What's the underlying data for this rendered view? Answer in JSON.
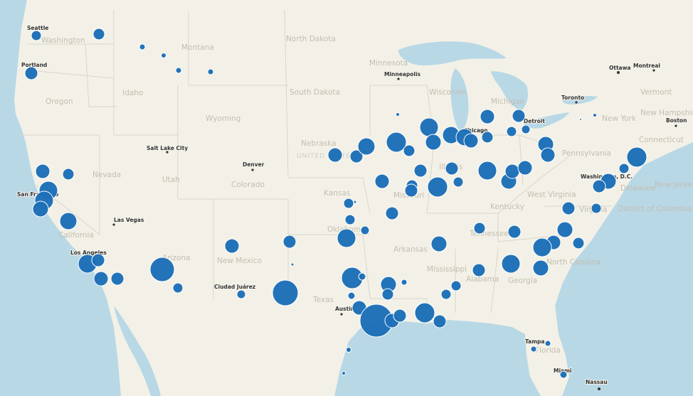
{
  "map": {
    "marker_color": "#1d6fb8",
    "land_color": "#f2f0e6",
    "water_color": "#b8d8e8",
    "state_labels": [
      "Washington",
      "Montana",
      "North Dakota",
      "Minnesota",
      "Oregon",
      "Idaho",
      "South Dakota",
      "Wisconsin",
      "Michigan",
      "Vermont",
      "New Hampshire",
      "Wyoming",
      "Nebraska",
      "Nevada",
      "Utah",
      "Colorado",
      "Kansas",
      "Missouri",
      "Illinois",
      "Pennsylvania",
      "New York",
      "Connecticut",
      "California",
      "West Virginia",
      "Kentucky",
      "Virginia",
      "Delaware",
      "New Jersey",
      "District of Columbia",
      "Oklahoma",
      "Tennessee",
      "Arkansas",
      "North Carolina",
      "Arizona",
      "New Mexico",
      "Mississippi",
      "Alabama",
      "Georgia",
      "Texas",
      "Florida"
    ],
    "city_labels": [
      "Seattle",
      "Portland",
      "Minneapolis",
      "Ottawa",
      "Montreal",
      "Toronto",
      "Boston",
      "Detroit",
      "Chicago",
      "Salt Lake City",
      "Denver",
      "Las Vegas",
      "Los Angeles",
      "San Francisco",
      "Ciudad Juárez",
      "Austin",
      "Tampa",
      "Miami",
      "Nassau",
      "Washington, D.C."
    ],
    "country_label": "UNITED STATES",
    "markers_count": 110
  }
}
